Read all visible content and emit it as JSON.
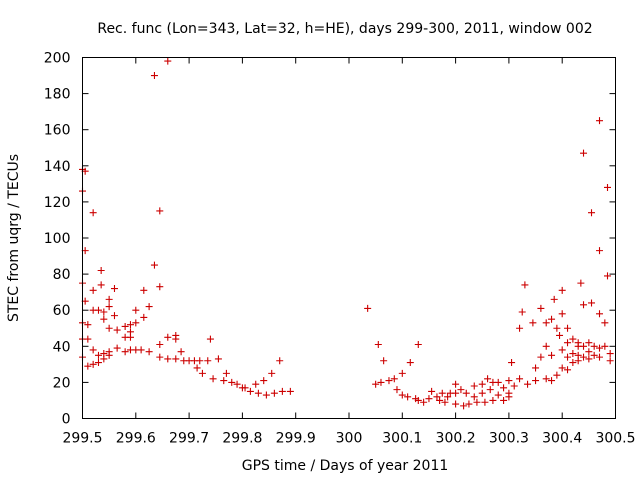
{
  "chart_data": {
    "type": "scatter",
    "title": "Rec. func (Lon=343, Lat=32, h=HE), days 299-300, 2011, window 002",
    "xlabel": "GPS time / Days of year 2011",
    "ylabel": "STEC from uqrg / TECUs",
    "xlim": [
      299.5,
      300.5
    ],
    "ylim": [
      0,
      200
    ],
    "xticks": [
      299.5,
      299.6,
      299.7,
      299.8,
      299.9,
      300,
      300.1,
      300.2,
      300.3,
      300.4,
      300.5
    ],
    "xtick_labels": [
      "299.5",
      "299.6",
      "299.7",
      "299.8",
      "299.9",
      "300",
      "300.1",
      "300.2",
      "300.3",
      "300.4",
      "300.5"
    ],
    "yticks": [
      0,
      20,
      40,
      60,
      80,
      100,
      120,
      140,
      160,
      180,
      200
    ],
    "ytick_labels": [
      "0",
      "20",
      "40",
      "60",
      "80",
      "100",
      "120",
      "140",
      "160",
      "180",
      "200"
    ],
    "marker": "+",
    "color": "#cc0000",
    "grid": false,
    "points": [
      [
        299.5,
        138
      ],
      [
        299.5,
        126
      ],
      [
        299.5,
        75
      ],
      [
        299.5,
        53
      ],
      [
        299.5,
        44
      ],
      [
        299.5,
        34
      ],
      [
        299.505,
        137
      ],
      [
        299.505,
        93
      ],
      [
        299.505,
        65
      ],
      [
        299.51,
        52
      ],
      [
        299.51,
        44
      ],
      [
        299.51,
        29
      ],
      [
        299.52,
        114
      ],
      [
        299.52,
        71
      ],
      [
        299.52,
        60
      ],
      [
        299.52,
        38
      ],
      [
        299.52,
        30
      ],
      [
        299.53,
        60
      ],
      [
        299.53,
        35
      ],
      [
        299.53,
        31
      ],
      [
        299.535,
        82
      ],
      [
        299.535,
        74
      ],
      [
        299.54,
        59
      ],
      [
        299.54,
        55
      ],
      [
        299.54,
        36
      ],
      [
        299.54,
        33
      ],
      [
        299.55,
        66
      ],
      [
        299.55,
        62
      ],
      [
        299.55,
        50
      ],
      [
        299.55,
        37
      ],
      [
        299.55,
        35
      ],
      [
        299.56,
        72
      ],
      [
        299.56,
        57
      ],
      [
        299.565,
        49
      ],
      [
        299.565,
        39
      ],
      [
        299.58,
        51
      ],
      [
        299.58,
        45
      ],
      [
        299.58,
        37
      ],
      [
        299.59,
        52
      ],
      [
        299.59,
        48
      ],
      [
        299.59,
        45
      ],
      [
        299.59,
        38
      ],
      [
        299.6,
        60
      ],
      [
        299.6,
        53
      ],
      [
        299.6,
        38
      ],
      [
        299.61,
        38
      ],
      [
        299.615,
        71
      ],
      [
        299.615,
        56
      ],
      [
        299.625,
        62
      ],
      [
        299.625,
        37
      ],
      [
        299.635,
        85
      ],
      [
        299.635,
        190
      ],
      [
        299.645,
        115
      ],
      [
        299.645,
        73
      ],
      [
        299.645,
        41
      ],
      [
        299.645,
        34
      ],
      [
        299.66,
        198
      ],
      [
        299.66,
        45
      ],
      [
        299.66,
        33
      ],
      [
        299.675,
        46
      ],
      [
        299.675,
        44
      ],
      [
        299.675,
        33
      ],
      [
        299.685,
        37
      ],
      [
        299.69,
        32
      ],
      [
        299.7,
        32
      ],
      [
        299.71,
        32
      ],
      [
        299.715,
        28
      ],
      [
        299.72,
        32
      ],
      [
        299.725,
        25
      ],
      [
        299.735,
        32
      ],
      [
        299.74,
        44
      ],
      [
        299.745,
        22
      ],
      [
        299.755,
        33
      ],
      [
        299.765,
        21
      ],
      [
        299.77,
        25
      ],
      [
        299.78,
        20
      ],
      [
        299.79,
        19
      ],
      [
        299.8,
        17
      ],
      [
        299.805,
        17
      ],
      [
        299.815,
        15
      ],
      [
        299.825,
        19
      ],
      [
        299.83,
        14
      ],
      [
        299.84,
        21
      ],
      [
        299.845,
        13
      ],
      [
        299.855,
        25
      ],
      [
        299.86,
        14
      ],
      [
        299.87,
        32
      ],
      [
        299.875,
        15
      ],
      [
        299.89,
        15
      ],
      [
        300.035,
        61
      ],
      [
        300.05,
        19
      ],
      [
        300.055,
        41
      ],
      [
        300.06,
        20
      ],
      [
        300.065,
        32
      ],
      [
        300.075,
        21
      ],
      [
        300.085,
        22
      ],
      [
        300.09,
        16
      ],
      [
        300.1,
        25
      ],
      [
        300.1,
        13
      ],
      [
        300.11,
        12
      ],
      [
        300.115,
        31
      ],
      [
        300.125,
        11
      ],
      [
        300.13,
        41
      ],
      [
        300.13,
        10
      ],
      [
        300.14,
        9
      ],
      [
        300.15,
        11
      ],
      [
        300.155,
        15
      ],
      [
        300.165,
        12
      ],
      [
        300.17,
        10
      ],
      [
        300.175,
        14
      ],
      [
        300.18,
        9
      ],
      [
        300.185,
        12
      ],
      [
        300.19,
        14
      ],
      [
        300.2,
        19
      ],
      [
        300.2,
        14
      ],
      [
        300.2,
        8
      ],
      [
        300.21,
        16
      ],
      [
        300.215,
        7
      ],
      [
        300.22,
        14
      ],
      [
        300.225,
        8
      ],
      [
        300.235,
        18
      ],
      [
        300.235,
        12
      ],
      [
        300.24,
        9
      ],
      [
        300.25,
        19
      ],
      [
        300.25,
        14
      ],
      [
        300.255,
        9
      ],
      [
        300.26,
        22
      ],
      [
        300.265,
        16
      ],
      [
        300.27,
        20
      ],
      [
        300.27,
        10
      ],
      [
        300.28,
        20
      ],
      [
        300.28,
        13
      ],
      [
        300.29,
        17
      ],
      [
        300.29,
        10
      ],
      [
        300.3,
        21
      ],
      [
        300.3,
        14
      ],
      [
        300.3,
        12
      ],
      [
        300.305,
        31
      ],
      [
        300.31,
        18
      ],
      [
        300.32,
        50
      ],
      [
        300.32,
        22
      ],
      [
        300.325,
        59
      ],
      [
        300.33,
        74
      ],
      [
        300.335,
        19
      ],
      [
        300.345,
        53
      ],
      [
        300.35,
        28
      ],
      [
        300.35,
        21
      ],
      [
        300.36,
        61
      ],
      [
        300.36,
        34
      ],
      [
        300.37,
        53
      ],
      [
        300.37,
        40
      ],
      [
        300.37,
        22
      ],
      [
        300.38,
        55
      ],
      [
        300.38,
        35
      ],
      [
        300.38,
        21
      ],
      [
        300.385,
        66
      ],
      [
        300.39,
        50
      ],
      [
        300.39,
        24
      ],
      [
        300.395,
        46
      ],
      [
        300.4,
        71
      ],
      [
        300.4,
        58
      ],
      [
        300.4,
        38
      ],
      [
        300.4,
        28
      ],
      [
        300.41,
        50
      ],
      [
        300.41,
        42
      ],
      [
        300.41,
        34
      ],
      [
        300.41,
        27
      ],
      [
        300.42,
        44
      ],
      [
        300.42,
        36
      ],
      [
        300.42,
        31
      ],
      [
        300.43,
        42
      ],
      [
        300.43,
        40
      ],
      [
        300.43,
        35
      ],
      [
        300.43,
        32
      ],
      [
        300.435,
        75
      ],
      [
        300.44,
        147
      ],
      [
        300.44,
        63
      ],
      [
        300.44,
        40
      ],
      [
        300.44,
        34
      ],
      [
        300.45,
        42
      ],
      [
        300.45,
        37
      ],
      [
        300.45,
        33
      ],
      [
        300.455,
        114
      ],
      [
        300.455,
        64
      ],
      [
        300.46,
        40
      ],
      [
        300.46,
        35
      ],
      [
        300.47,
        165
      ],
      [
        300.47,
        93
      ],
      [
        300.47,
        58
      ],
      [
        300.47,
        39
      ],
      [
        300.47,
        34
      ],
      [
        300.48,
        53
      ],
      [
        300.48,
        40
      ],
      [
        300.485,
        128
      ],
      [
        300.485,
        79
      ],
      [
        300.49,
        36
      ],
      [
        300.49,
        32
      ]
    ]
  }
}
